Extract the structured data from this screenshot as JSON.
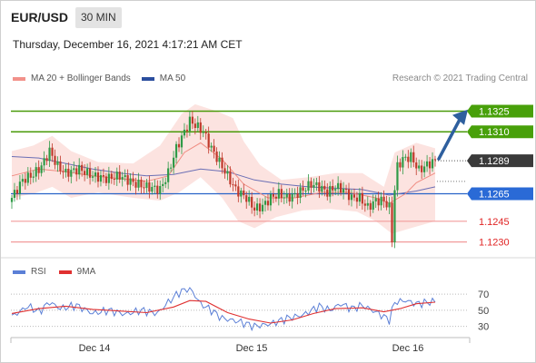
{
  "header": {
    "pair": "EUR/USD",
    "timeframe": "30 MIN"
  },
  "datetime": "Thursday, December 16, 2021 4:17:21 AM CET",
  "legend": {
    "ma20": "MA 20 + Bollinger Bands",
    "ma50": "MA 50",
    "credit": "Research © 2021 Trading Central"
  },
  "rsi_legend": {
    "rsi": "RSI",
    "ma": "9MA"
  },
  "colors": {
    "green": "#4a9a0a",
    "blue": "#2864c8",
    "red": "#e05050",
    "dark": "#333333",
    "arrow": "#2e5f9e",
    "band": "#fbd9d6",
    "ma20": "#f08c82",
    "ma50": "#6b6fb5",
    "rsi": "#5b7fd6",
    "rsi_ma": "#e03030"
  },
  "chart_data": [
    {
      "type": "candlestick",
      "y_range": [
        1.12205,
        1.13385
      ],
      "x_labels": [
        "Dec 14",
        "Dec 15",
        "Dec 16"
      ],
      "levels": [
        {
          "value": 1.1325,
          "label": "1.1325",
          "style": "green"
        },
        {
          "value": 1.131,
          "label": "1.1310",
          "style": "green"
        },
        {
          "value": 1.1289,
          "label": "1.1289",
          "style": "current"
        },
        {
          "value": 1.1265,
          "label": "1.1265",
          "style": "blue"
        },
        {
          "value": 1.1245,
          "label": "1.1245",
          "style": "red"
        },
        {
          "value": 1.123,
          "label": "1.1230",
          "style": "red"
        }
      ],
      "price_path": [
        [
          0,
          1.1262
        ],
        [
          4,
          1.1275
        ],
        [
          8,
          1.1279
        ],
        [
          11,
          1.1285
        ],
        [
          14,
          1.1296
        ],
        [
          17,
          1.1285
        ],
        [
          20,
          1.128
        ],
        [
          25,
          1.1283
        ],
        [
          30,
          1.1278
        ],
        [
          35,
          1.1276
        ],
        [
          40,
          1.1278
        ],
        [
          45,
          1.1273
        ],
        [
          50,
          1.127
        ],
        [
          55,
          1.1268
        ],
        [
          58,
          1.128
        ],
        [
          61,
          1.1298
        ],
        [
          64,
          1.131
        ],
        [
          66,
          1.1318
        ],
        [
          68,
          1.1315
        ],
        [
          71,
          1.131
        ],
        [
          74,
          1.1298
        ],
        [
          77,
          1.1288
        ],
        [
          80,
          1.1278
        ],
        [
          83,
          1.1268
        ],
        [
          87,
          1.1262
        ],
        [
          90,
          1.1254
        ],
        [
          93,
          1.1256
        ],
        [
          96,
          1.1262
        ],
        [
          99,
          1.1265
        ],
        [
          102,
          1.1262
        ],
        [
          105,
          1.1264
        ],
        [
          108,
          1.1268
        ],
        [
          111,
          1.1272
        ],
        [
          114,
          1.127
        ],
        [
          117,
          1.1266
        ],
        [
          120,
          1.127
        ],
        [
          123,
          1.1268
        ],
        [
          126,
          1.1262
        ],
        [
          129,
          1.1262
        ],
        [
          132,
          1.1255
        ],
        [
          135,
          1.126
        ],
        [
          138,
          1.126
        ],
        [
          140,
          1.1255
        ],
        [
          141,
          1.1232
        ],
        [
          142,
          1.1268
        ],
        [
          143,
          1.1285
        ],
        [
          145,
          1.129
        ],
        [
          148,
          1.1292
        ],
        [
          151,
          1.1282
        ],
        [
          154,
          1.1286
        ],
        [
          157,
          1.1289
        ]
      ],
      "ma20": [
        [
          0,
          1.1278
        ],
        [
          10,
          1.1283
        ],
        [
          20,
          1.1281
        ],
        [
          30,
          1.1278
        ],
        [
          40,
          1.1276
        ],
        [
          50,
          1.1274
        ],
        [
          58,
          1.1278
        ],
        [
          64,
          1.1295
        ],
        [
          70,
          1.1302
        ],
        [
          78,
          1.129
        ],
        [
          86,
          1.1272
        ],
        [
          95,
          1.1262
        ],
        [
          105,
          1.1262
        ],
        [
          115,
          1.1266
        ],
        [
          125,
          1.1266
        ],
        [
          135,
          1.1262
        ],
        [
          140,
          1.1258
        ],
        [
          146,
          1.1265
        ],
        [
          150,
          1.1273
        ],
        [
          157,
          1.128
        ]
      ],
      "ma50": [
        [
          0,
          1.1292
        ],
        [
          10,
          1.1291
        ],
        [
          20,
          1.1287
        ],
        [
          30,
          1.1283
        ],
        [
          40,
          1.128
        ],
        [
          50,
          1.1278
        ],
        [
          60,
          1.1279
        ],
        [
          70,
          1.1283
        ],
        [
          80,
          1.1281
        ],
        [
          90,
          1.1275
        ],
        [
          100,
          1.1272
        ],
        [
          110,
          1.127
        ],
        [
          120,
          1.1269
        ],
        [
          130,
          1.1268
        ],
        [
          140,
          1.1264
        ],
        [
          150,
          1.1267
        ],
        [
          157,
          1.127
        ]
      ],
      "band_upper": [
        [
          0,
          1.1296
        ],
        [
          8,
          1.13
        ],
        [
          15,
          1.1307
        ],
        [
          22,
          1.1296
        ],
        [
          32,
          1.1288
        ],
        [
          45,
          1.1287
        ],
        [
          55,
          1.13
        ],
        [
          63,
          1.1323
        ],
        [
          68,
          1.133
        ],
        [
          76,
          1.1325
        ],
        [
          82,
          1.132
        ],
        [
          86,
          1.1303
        ],
        [
          92,
          1.1286
        ],
        [
          100,
          1.1275
        ],
        [
          110,
          1.1277
        ],
        [
          120,
          1.128
        ],
        [
          130,
          1.128
        ],
        [
          138,
          1.127
        ],
        [
          142,
          1.1295
        ],
        [
          150,
          1.1302
        ],
        [
          157,
          1.1298
        ]
      ],
      "band_lower": [
        [
          0,
          1.1262
        ],
        [
          8,
          1.1265
        ],
        [
          15,
          1.127
        ],
        [
          22,
          1.1262
        ],
        [
          32,
          1.1266
        ],
        [
          45,
          1.1262
        ],
        [
          55,
          1.126
        ],
        [
          62,
          1.1266
        ],
        [
          70,
          1.1277
        ],
        [
          78,
          1.1262
        ],
        [
          84,
          1.1245
        ],
        [
          90,
          1.124
        ],
        [
          98,
          1.1248
        ],
        [
          108,
          1.1253
        ],
        [
          118,
          1.1254
        ],
        [
          128,
          1.1252
        ],
        [
          135,
          1.1245
        ],
        [
          141,
          1.1236
        ],
        [
          148,
          1.124
        ],
        [
          157,
          1.1245
        ]
      ]
    },
    {
      "type": "line",
      "name": "RSI",
      "y_ticks": [
        70,
        50,
        30
      ],
      "y_range": [
        25,
        78
      ],
      "rsi": [
        [
          0,
          42
        ],
        [
          6,
          55
        ],
        [
          10,
          48
        ],
        [
          14,
          60
        ],
        [
          18,
          52
        ],
        [
          24,
          56
        ],
        [
          30,
          46
        ],
        [
          36,
          50
        ],
        [
          42,
          45
        ],
        [
          48,
          50
        ],
        [
          54,
          46
        ],
        [
          58,
          60
        ],
        [
          62,
          72
        ],
        [
          66,
          78
        ],
        [
          70,
          58
        ],
        [
          74,
          50
        ],
        [
          78,
          40
        ],
        [
          84,
          36
        ],
        [
          90,
          30
        ],
        [
          96,
          33
        ],
        [
          102,
          40
        ],
        [
          108,
          44
        ],
        [
          114,
          55
        ],
        [
          118,
          50
        ],
        [
          122,
          58
        ],
        [
          126,
          52
        ],
        [
          130,
          56
        ],
        [
          136,
          46
        ],
        [
          140,
          38
        ],
        [
          142,
          60
        ],
        [
          146,
          62
        ],
        [
          150,
          58
        ],
        [
          157,
          61
        ]
      ],
      "rsi_ma": [
        [
          0,
          46
        ],
        [
          10,
          52
        ],
        [
          20,
          55
        ],
        [
          30,
          51
        ],
        [
          40,
          49
        ],
        [
          50,
          47
        ],
        [
          60,
          54
        ],
        [
          66,
          62
        ],
        [
          72,
          61
        ],
        [
          80,
          47
        ],
        [
          88,
          39
        ],
        [
          96,
          34
        ],
        [
          104,
          38
        ],
        [
          112,
          46
        ],
        [
          120,
          52
        ],
        [
          130,
          53
        ],
        [
          138,
          48
        ],
        [
          144,
          52
        ],
        [
          150,
          58
        ],
        [
          157,
          60
        ]
      ]
    }
  ]
}
